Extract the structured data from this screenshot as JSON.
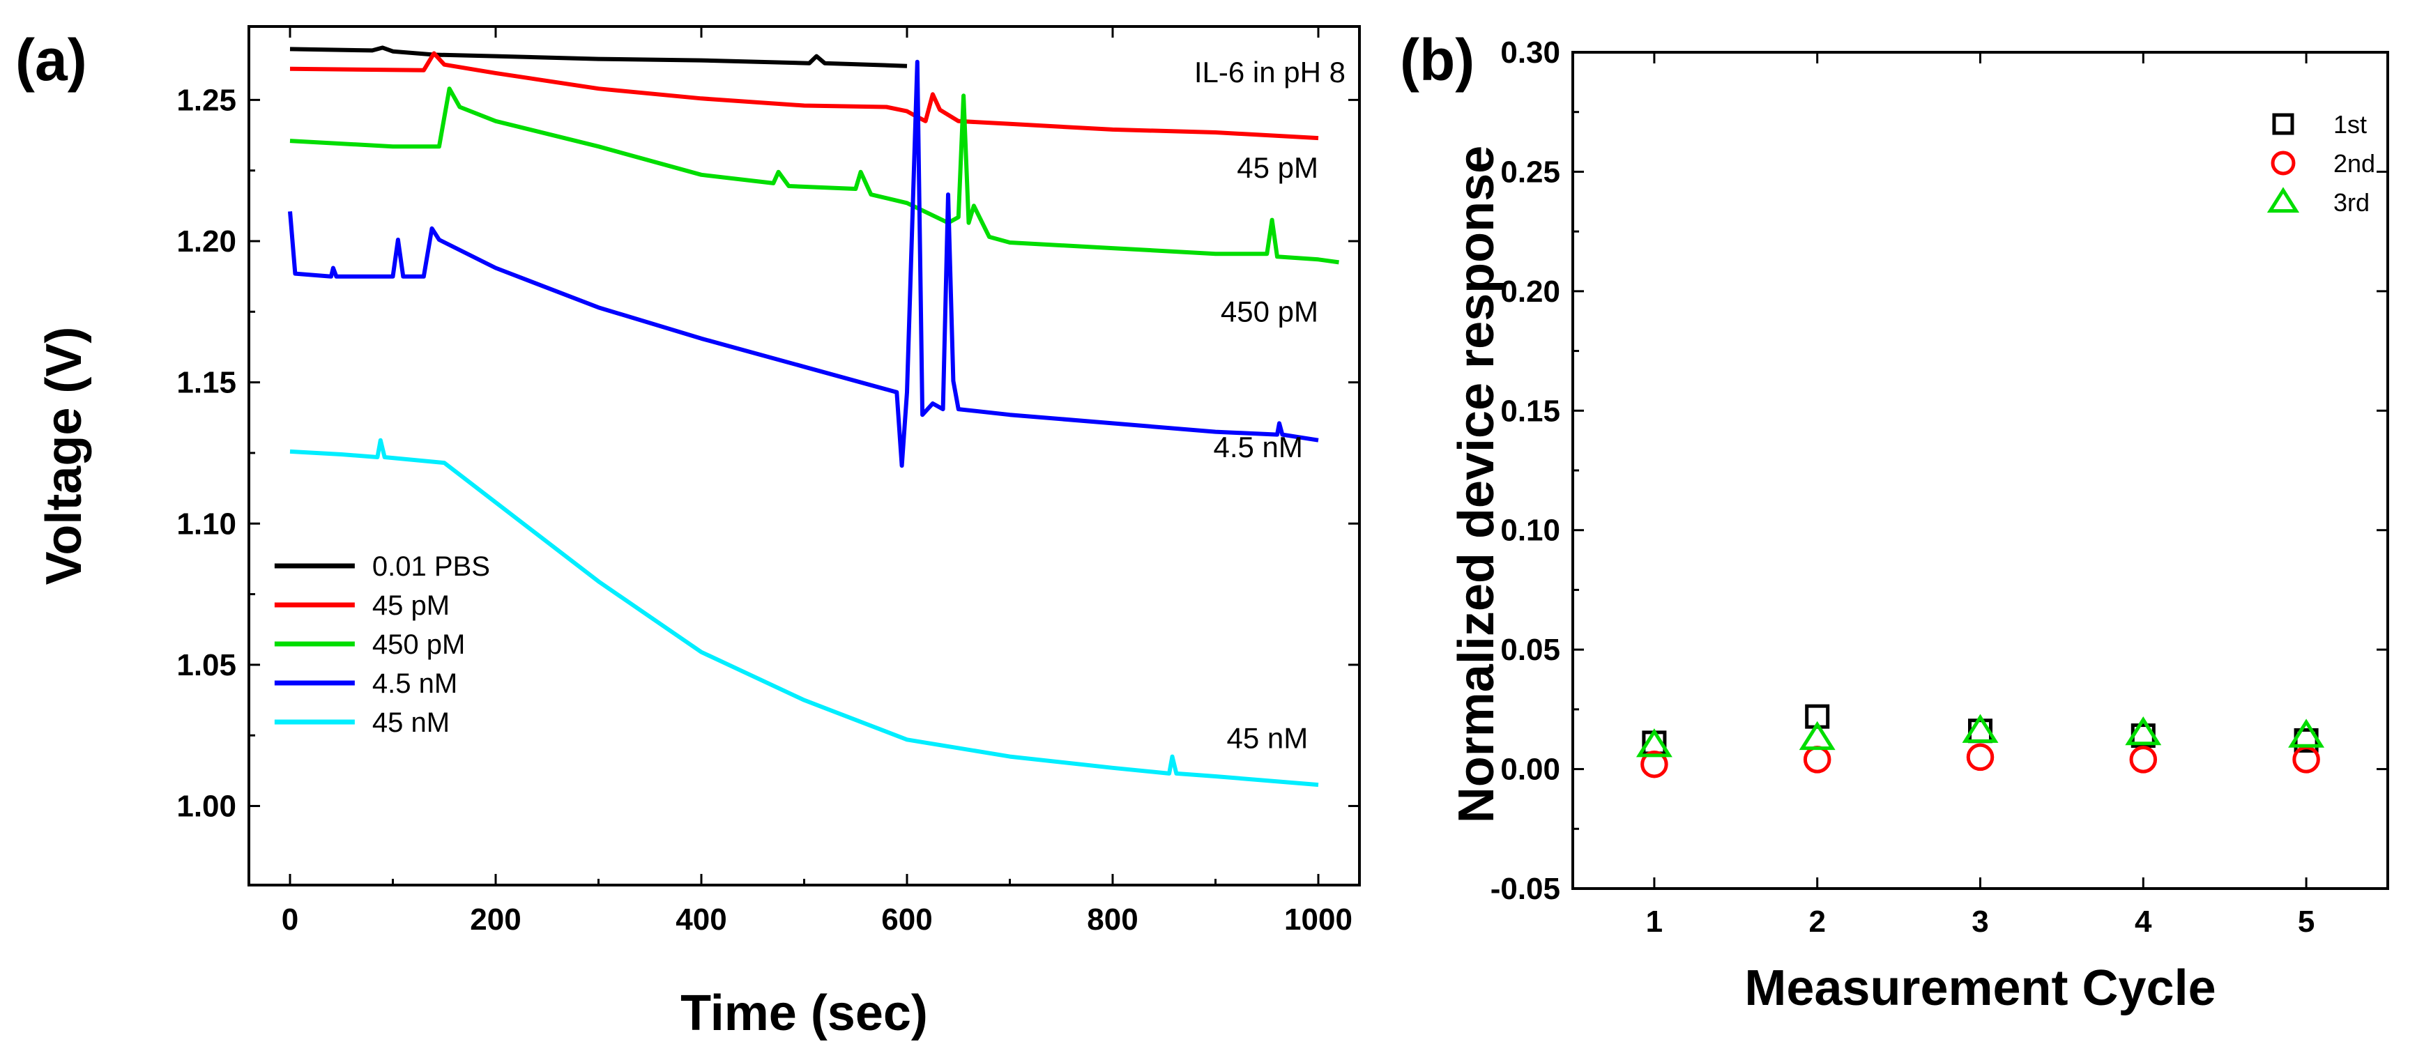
{
  "panels": {
    "a": {
      "label": "(a)"
    },
    "b": {
      "label": "(b)"
    }
  },
  "chart_data": [
    {
      "panel": "(a)",
      "type": "line",
      "title": "",
      "annotation": "IL-6 in pH 8",
      "xlabel": "Time (sec)",
      "ylabel": "Voltage (V)",
      "xlim": [
        -40,
        1040
      ],
      "ylim": [
        0.972,
        1.276
      ],
      "xticks": [
        0,
        200,
        400,
        600,
        800,
        1000
      ],
      "yticks": [
        1.0,
        1.05,
        1.1,
        1.15,
        1.2,
        1.25
      ],
      "xtick_labels": [
        "0",
        "200",
        "400",
        "600",
        "800",
        "1000"
      ],
      "ytick_labels": [
        "1.00",
        "1.05",
        "1.10",
        "1.15",
        "1.20",
        "1.25"
      ],
      "legend_position": "bottom-left",
      "series": [
        {
          "name": "0.01 PBS",
          "color": "#000000",
          "points": [
            [
              0,
              1.268
            ],
            [
              80,
              1.2675
            ],
            [
              90,
              1.2685
            ],
            [
              100,
              1.2672
            ],
            [
              140,
              1.266
            ],
            [
              200,
              1.2655
            ],
            [
              300,
              1.2645
            ],
            [
              400,
              1.264
            ],
            [
              505,
              1.263
            ],
            [
              512,
              1.2655
            ],
            [
              520,
              1.263
            ],
            [
              600,
              1.262
            ]
          ]
        },
        {
          "name": "45 pM",
          "color": "#ff0000",
          "points": [
            [
              0,
              1.261
            ],
            [
              130,
              1.2605
            ],
            [
              140,
              1.2665
            ],
            [
              150,
              1.2625
            ],
            [
              200,
              1.2595
            ],
            [
              300,
              1.254
            ],
            [
              400,
              1.2505
            ],
            [
              500,
              1.248
            ],
            [
              580,
              1.2475
            ],
            [
              600,
              1.246
            ],
            [
              610,
              1.244
            ],
            [
              618,
              1.2425
            ],
            [
              625,
              1.252
            ],
            [
              632,
              1.2465
            ],
            [
              650,
              1.2425
            ],
            [
              700,
              1.2415
            ],
            [
              800,
              1.2395
            ],
            [
              900,
              1.2385
            ],
            [
              1000,
              1.2365
            ]
          ]
        },
        {
          "name": "450 pM",
          "color": "#00dd00",
          "points": [
            [
              0,
              1.2355
            ],
            [
              100,
              1.2335
            ],
            [
              145,
              1.2335
            ],
            [
              155,
              1.254
            ],
            [
              165,
              1.2475
            ],
            [
              200,
              1.2425
            ],
            [
              300,
              1.2335
            ],
            [
              400,
              1.2235
            ],
            [
              470,
              1.2205
            ],
            [
              475,
              1.2245
            ],
            [
              485,
              1.2195
            ],
            [
              550,
              1.2185
            ],
            [
              555,
              1.2245
            ],
            [
              565,
              1.2165
            ],
            [
              600,
              1.2135
            ],
            [
              640,
              1.2065
            ],
            [
              650,
              1.2085
            ],
            [
              655,
              1.2515
            ],
            [
              660,
              1.2065
            ],
            [
              665,
              1.2125
            ],
            [
              680,
              1.2015
            ],
            [
              700,
              1.1995
            ],
            [
              800,
              1.1975
            ],
            [
              900,
              1.1955
            ],
            [
              950,
              1.1955
            ],
            [
              955,
              1.2075
            ],
            [
              960,
              1.1945
            ],
            [
              1000,
              1.1935
            ],
            [
              1020,
              1.1925
            ]
          ]
        },
        {
          "name": "4.5 nM",
          "color": "#0000ff",
          "points": [
            [
              0,
              1.2105
            ],
            [
              5,
              1.1885
            ],
            [
              40,
              1.1875
            ],
            [
              42,
              1.1905
            ],
            [
              45,
              1.1875
            ],
            [
              100,
              1.1875
            ],
            [
              105,
              1.2005
            ],
            [
              110,
              1.1875
            ],
            [
              130,
              1.1875
            ],
            [
              138,
              1.2045
            ],
            [
              145,
              1.2005
            ],
            [
              200,
              1.1905
            ],
            [
              300,
              1.1765
            ],
            [
              400,
              1.1655
            ],
            [
              500,
              1.1555
            ],
            [
              590,
              1.1465
            ],
            [
              595,
              1.1205
            ],
            [
              600,
              1.1465
            ],
            [
              610,
              1.2635
            ],
            [
              615,
              1.1385
            ],
            [
              625,
              1.1425
            ],
            [
              635,
              1.1405
            ],
            [
              640,
              1.2165
            ],
            [
              645,
              1.1505
            ],
            [
              650,
              1.1405
            ],
            [
              700,
              1.1385
            ],
            [
              800,
              1.1355
            ],
            [
              900,
              1.1325
            ],
            [
              960,
              1.1315
            ],
            [
              962,
              1.1355
            ],
            [
              965,
              1.1315
            ],
            [
              1000,
              1.1295
            ]
          ]
        },
        {
          "name": "45 nM",
          "color": "#00eeff",
          "points": [
            [
              0,
              1.1255
            ],
            [
              50,
              1.1245
            ],
            [
              85,
              1.1235
            ],
            [
              88,
              1.1295
            ],
            [
              92,
              1.1235
            ],
            [
              150,
              1.1215
            ],
            [
              200,
              1.1075
            ],
            [
              300,
              1.0795
            ],
            [
              400,
              1.0545
            ],
            [
              500,
              1.0375
            ],
            [
              600,
              1.0235
            ],
            [
              650,
              1.0205
            ],
            [
              700,
              1.0175
            ],
            [
              800,
              1.0135
            ],
            [
              855,
              1.0115
            ],
            [
              858,
              1.0175
            ],
            [
              862,
              1.0115
            ],
            [
              900,
              1.0105
            ],
            [
              1000,
              1.0075
            ]
          ]
        }
      ],
      "annotations": [
        {
          "text": "45 pM",
          "x": 1000,
          "y": 1.2225,
          "anchor": "end"
        },
        {
          "text": "450 pM",
          "x": 1000,
          "y": 1.1715,
          "anchor": "end"
        },
        {
          "text": "4.5 nM",
          "x": 985,
          "y": 1.1235,
          "anchor": "end"
        },
        {
          "text": "45 nM",
          "x": 990,
          "y": 1.0205,
          "anchor": "end"
        }
      ]
    },
    {
      "panel": "(b)",
      "type": "scatter",
      "title": "",
      "xlabel": "Measurement Cycle",
      "ylabel": "Normalized device response",
      "xlim": [
        0.5,
        5.5
      ],
      "ylim": [
        -0.05,
        0.3
      ],
      "xticks": [
        1,
        2,
        3,
        4,
        5
      ],
      "yticks": [
        -0.05,
        0.0,
        0.05,
        0.1,
        0.15,
        0.2,
        0.25,
        0.3
      ],
      "xtick_labels": [
        "1",
        "2",
        "3",
        "4",
        "5"
      ],
      "ytick_labels": [
        "-0.05",
        "0.00",
        "0.05",
        "0.10",
        "0.15",
        "0.20",
        "0.25",
        "0.30"
      ],
      "legend_position": "top-right",
      "series": [
        {
          "name": "1st",
          "marker": "square",
          "color": "#000000",
          "x": [
            1,
            2,
            3,
            4,
            5
          ],
          "y": [
            0.011,
            0.022,
            0.016,
            0.014,
            0.012
          ]
        },
        {
          "name": "2nd",
          "marker": "circle",
          "color": "#ff0000",
          "x": [
            1,
            2,
            3,
            4,
            5
          ],
          "y": [
            0.002,
            0.004,
            0.005,
            0.004,
            0.004
          ]
        },
        {
          "name": "3rd",
          "marker": "triangle",
          "color": "#00dd00",
          "x": [
            1,
            2,
            3,
            4,
            5
          ],
          "y": [
            0.01,
            0.013,
            0.016,
            0.015,
            0.014
          ]
        }
      ]
    }
  ]
}
